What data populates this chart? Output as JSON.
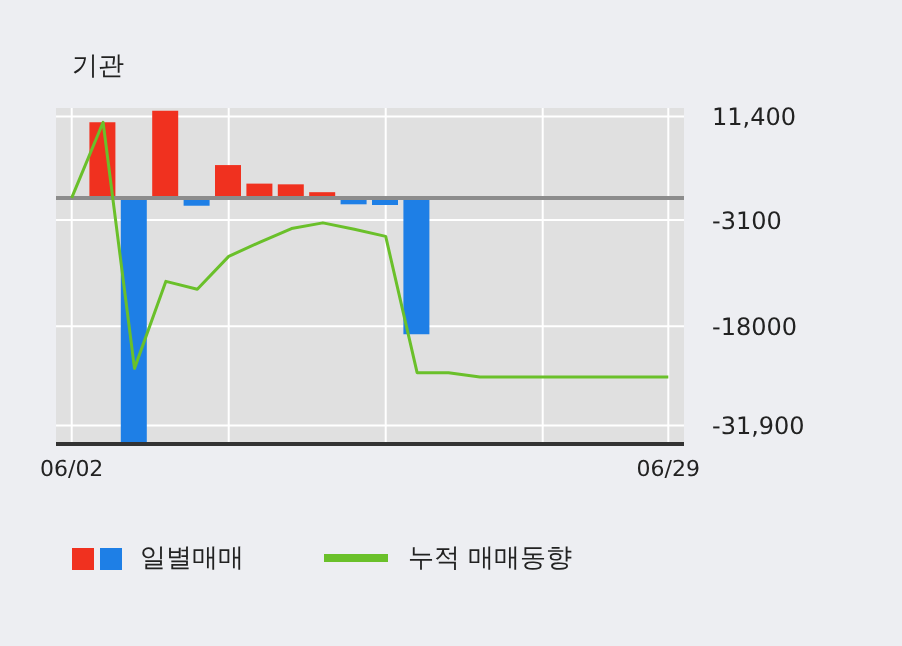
{
  "chart_data": {
    "type": "bar",
    "title": "기관",
    "categories": [
      "06/02",
      null,
      null,
      null,
      null,
      null,
      null,
      null,
      null,
      null,
      null,
      null,
      null,
      null,
      null,
      null,
      null,
      null,
      null,
      "06/29"
    ],
    "series": [
      {
        "name": "일별매매",
        "colors": [
          null,
          "#f0311f",
          "#1e7fe6",
          "#f0311f",
          "#1e7fe6",
          "#f0311f",
          "#f0311f",
          "#f0311f",
          "#f0311f",
          "#1e7fe6",
          "#1e7fe6",
          "#1e7fe6",
          null,
          null,
          null,
          null,
          null,
          null,
          null,
          null
        ],
        "values": [
          null,
          10600,
          -34500,
          12200,
          -1100,
          4600,
          2000,
          1900,
          800,
          -900,
          -1000,
          -19100,
          null,
          null,
          null,
          null,
          null,
          null,
          null,
          null
        ]
      },
      {
        "name": "누적 매매동향",
        "type": "line",
        "color": "#6ac02a",
        "values": [
          0,
          10600,
          -23900,
          -11700,
          -12800,
          -8200,
          -6200,
          -4300,
          -3500,
          -4400,
          -5400,
          -24500,
          -24500,
          -25100,
          -25100,
          -25100,
          -25100,
          -25100,
          -25100,
          -25100
        ]
      }
    ],
    "ylim": [
      -34500,
      12600
    ],
    "yticks": [
      {
        "value": 11400,
        "label": "11,400"
      },
      -3100,
      -18000,
      {
        "value": -31900,
        "label": "-31,900"
      }
    ],
    "ref_lines": [
      {
        "axis": "y",
        "value": 0,
        "color": "#8c8c8c"
      }
    ],
    "grid": true,
    "legend": "bottom",
    "marker": "none",
    "line_style": "solid"
  }
}
